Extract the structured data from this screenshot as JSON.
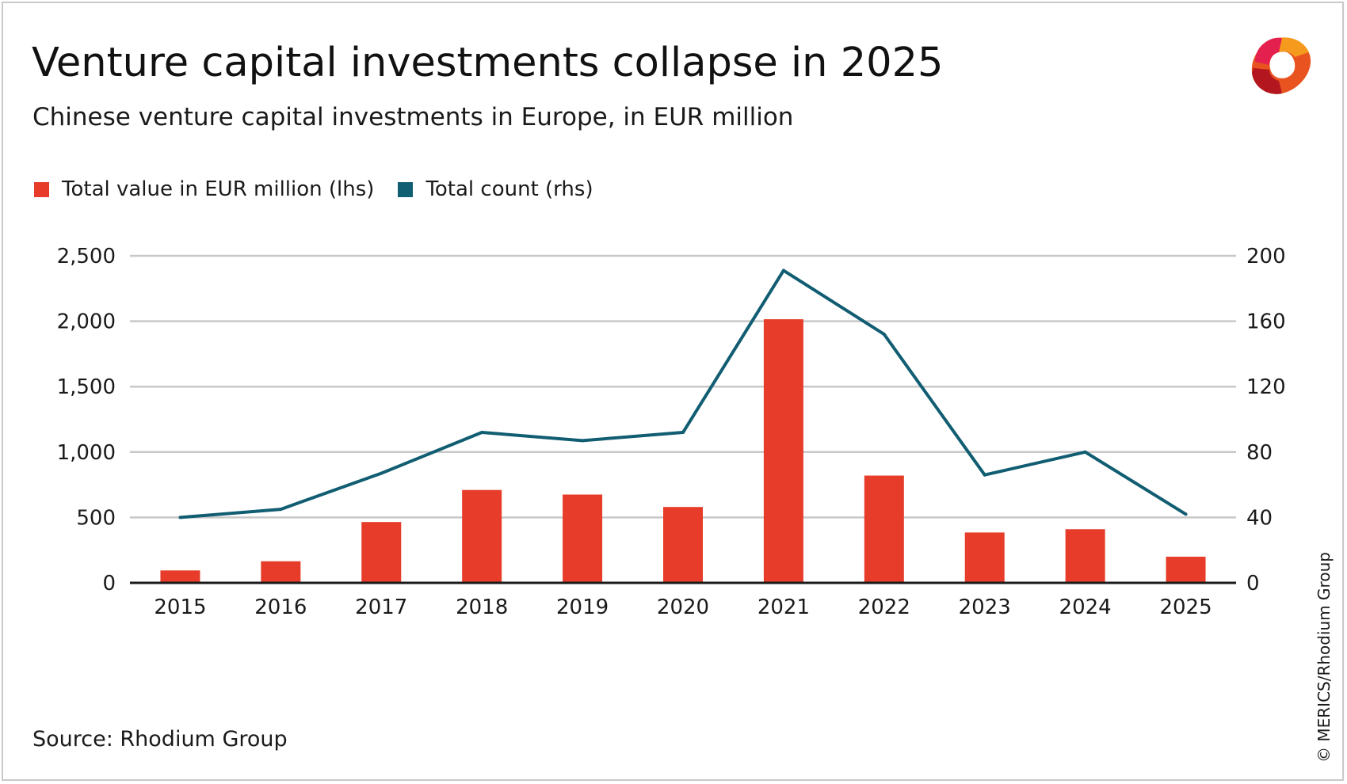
{
  "header": {
    "title": "Venture capital investments collapse in 2025",
    "subtitle": "Chinese venture capital investments in Europe, in EUR million"
  },
  "footer": {
    "source": "Source: Rhodium Group",
    "copyright": "© MERICS/Rhodium Group"
  },
  "colors": {
    "bar": "#e63c29",
    "line": "#115d72",
    "grid": "#c8c8c8",
    "axis": "#1a1a1a"
  },
  "logo": {
    "icon": "merics-logo-icon"
  },
  "chart_data": {
    "type": "bar",
    "categories": [
      "2015",
      "2016",
      "2017",
      "2018",
      "2019",
      "2020",
      "2021",
      "2022",
      "2023",
      "2024",
      "2025"
    ],
    "series": [
      {
        "name": "Total value in EUR million (lhs)",
        "type": "bar",
        "axis": "left",
        "values": [
          95,
          165,
          465,
          710,
          675,
          580,
          2015,
          820,
          385,
          410,
          200
        ]
      },
      {
        "name": "Total count (rhs)",
        "type": "line",
        "axis": "right",
        "values": [
          40,
          45,
          67,
          92,
          87,
          92,
          191,
          152,
          66,
          80,
          42
        ]
      }
    ],
    "y_left": {
      "ticks": [
        "2,500",
        "2,000",
        "1,500",
        "1,000",
        "500",
        "0"
      ],
      "values": [
        2500,
        2000,
        1500,
        1000,
        500,
        0
      ],
      "lim": [
        0,
        2500
      ]
    },
    "y_right": {
      "ticks": [
        "200",
        "160",
        "120",
        "80",
        "40",
        "0"
      ],
      "values": [
        200,
        160,
        120,
        80,
        40,
        0
      ],
      "lim": [
        0,
        200
      ]
    },
    "xlabel": "",
    "ylabel": "",
    "grid": true,
    "legend": "top-left"
  }
}
